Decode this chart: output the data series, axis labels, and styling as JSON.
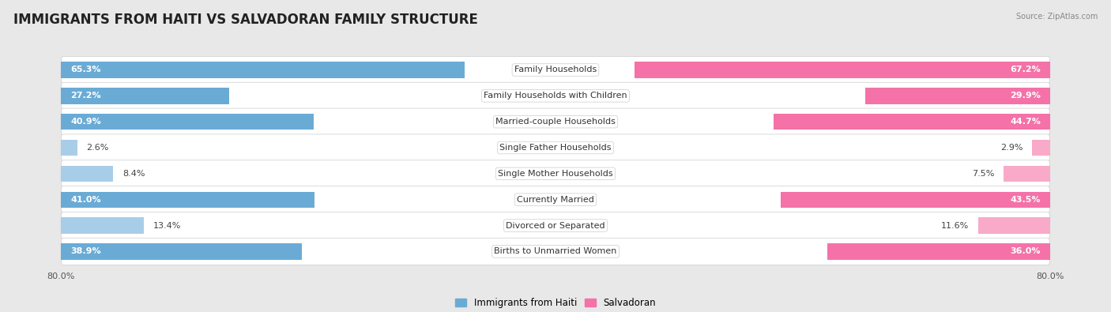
{
  "title": "IMMIGRANTS FROM HAITI VS SALVADORAN FAMILY STRUCTURE",
  "source": "Source: ZipAtlas.com",
  "categories": [
    "Family Households",
    "Family Households with Children",
    "Married-couple Households",
    "Single Father Households",
    "Single Mother Households",
    "Currently Married",
    "Divorced or Separated",
    "Births to Unmarried Women"
  ],
  "haiti_values": [
    65.3,
    27.2,
    40.9,
    2.6,
    8.4,
    41.0,
    13.4,
    38.9
  ],
  "salvadoran_values": [
    67.2,
    29.9,
    44.7,
    2.9,
    7.5,
    43.5,
    11.6,
    36.0
  ],
  "max_val": 80.0,
  "haiti_color_strong": "#6aabd6",
  "haiti_color_light": "#a8cde8",
  "salvadoran_color_strong": "#f472a8",
  "salvadoran_color_light": "#f9aac8",
  "strong_threshold": 15.0,
  "haiti_label": "Immigrants from Haiti",
  "salvadoran_label": "Salvadoran",
  "background_color": "#e8e8e8",
  "row_bg_color": "#ffffff",
  "bar_height": 0.62,
  "title_fontsize": 12,
  "label_fontsize": 8,
  "tick_fontsize": 8,
  "value_fontsize_inside": 8,
  "value_fontsize_outside": 8
}
